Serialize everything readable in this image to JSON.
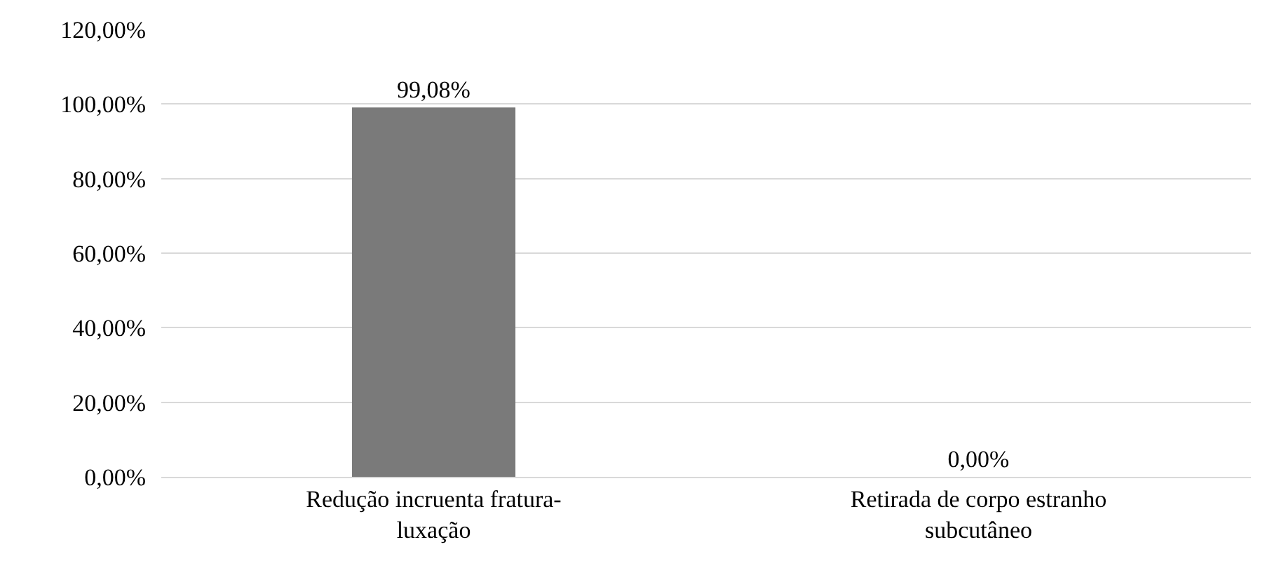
{
  "chart_data": {
    "type": "bar",
    "categories": [
      "Redução incruenta fratura-luxação",
      "Retirada de corpo estranho subcutâneo"
    ],
    "values": [
      99.08,
      0.0
    ],
    "value_labels": [
      "99,08%",
      "0,00%"
    ],
    "color": "#7a7a7a",
    "ylim": [
      0,
      120
    ],
    "yticks": [
      {
        "value": 0,
        "label": "0,00%"
      },
      {
        "value": 20,
        "label": "20,00%"
      },
      {
        "value": 40,
        "label": "40,00%"
      },
      {
        "value": 60,
        "label": "60,00%"
      },
      {
        "value": 80,
        "label": "80,00%"
      },
      {
        "value": 100,
        "label": "100,00%"
      },
      {
        "value": 120,
        "label": "120,00%"
      }
    ],
    "grid": "y"
  }
}
